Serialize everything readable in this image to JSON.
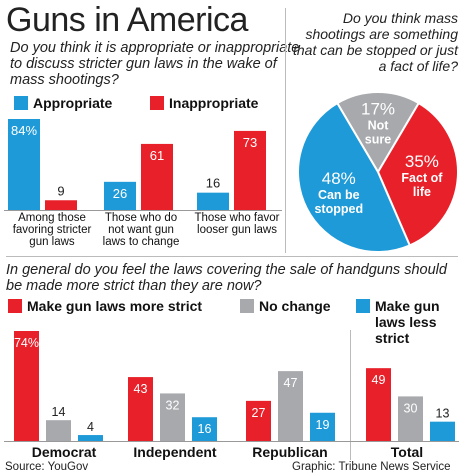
{
  "title": "Guns in America",
  "question1": "Do you think it is appropriate or inappropriate to discuss stricter gun laws in the wake of mass shootings?",
  "question2": "Do you think mass shootings are something that can be stopped or just a fact of life?",
  "question3": "In general do you feel the laws covering the sale of handguns should be made more strict than they are now?",
  "source": "Source: YouGov",
  "credit": "Graphic: Tribune News Service",
  "colors": {
    "blue": "#1f9ad8",
    "red": "#e8202a",
    "gray": "#a7a9ac"
  },
  "chart_data": [
    {
      "type": "bar",
      "categories": [
        "Among those favoring stricter gun laws",
        "Those who do not want gun laws to change",
        "Those who favor looser gun laws"
      ],
      "series": [
        {
          "name": "Appropriate",
          "values": [
            84,
            26,
            16
          ],
          "labels": [
            "84%",
            "26",
            "16"
          ]
        },
        {
          "name": "Inappropriate",
          "values": [
            9,
            61,
            73
          ],
          "labels": [
            "9",
            "61",
            "73"
          ]
        }
      ],
      "ylim": [
        0,
        100
      ]
    },
    {
      "type": "pie",
      "slices": [
        {
          "label": "Not sure",
          "value": 17,
          "text": "17%"
        },
        {
          "label": "Fact of life",
          "value": 35,
          "text": "35%"
        },
        {
          "label": "Can be stopped",
          "value": 48,
          "text": "48%"
        }
      ]
    },
    {
      "type": "bar",
      "categories": [
        "Democrat",
        "Independent",
        "Republican",
        "Total"
      ],
      "series": [
        {
          "name": "Make gun laws more strict",
          "values": [
            74,
            43,
            27,
            49
          ],
          "labels": [
            "74%",
            "43",
            "27",
            "49"
          ]
        },
        {
          "name": "No change",
          "values": [
            14,
            32,
            47,
            30
          ],
          "labels": [
            "14",
            "32",
            "47",
            "30"
          ]
        },
        {
          "name": "Make gun laws less strict",
          "values": [
            4,
            16,
            19,
            13
          ],
          "labels": [
            "4",
            "16",
            "19",
            "13"
          ]
        }
      ],
      "ylim": [
        0,
        100
      ]
    }
  ]
}
